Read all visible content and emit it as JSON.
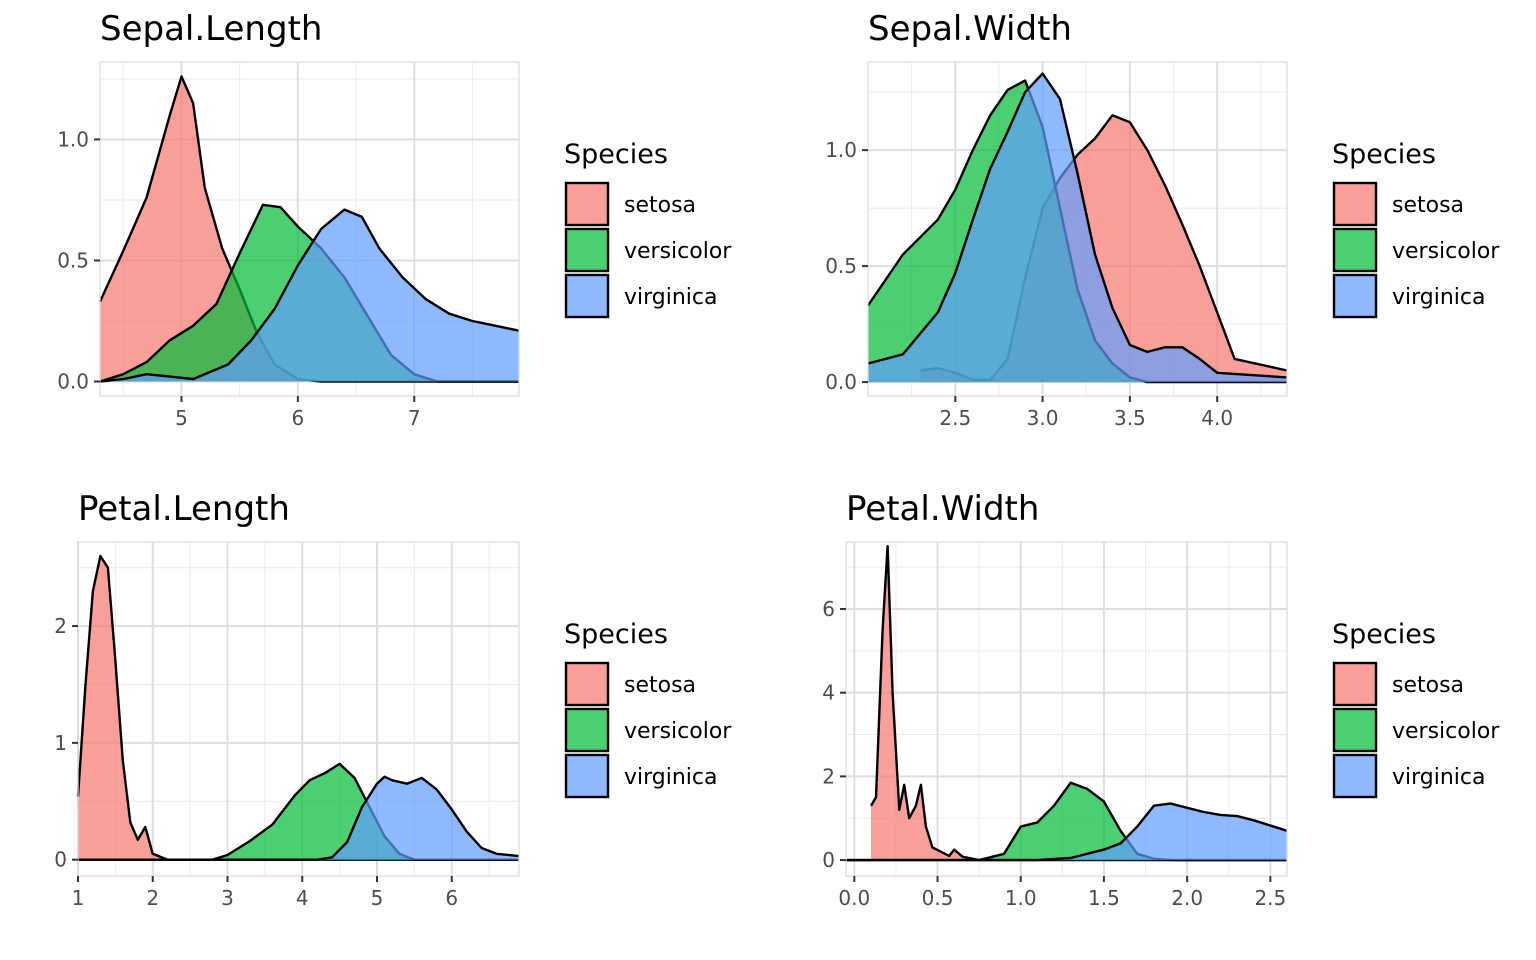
{
  "chart_data": [
    {
      "type": "area",
      "title": "Sepal.Length",
      "xlim": [
        4.3,
        7.9
      ],
      "ylim": [
        -0.06,
        1.32
      ],
      "x_ticks": [
        5,
        6,
        7
      ],
      "x_tick_labels": [
        "5",
        "6",
        "7"
      ],
      "y_ticks": [
        0,
        0.5,
        1.0
      ],
      "y_tick_labels": [
        "0.0",
        "0.5",
        "1.0"
      ],
      "grid": true,
      "legend": {
        "title": "Species",
        "position": "right",
        "entries": [
          "setosa",
          "versicolor",
          "virginica"
        ]
      },
      "series": [
        {
          "name": "setosa",
          "color": "#F8766D",
          "points": [
            [
              4.3,
              0.33
            ],
            [
              4.5,
              0.54
            ],
            [
              4.7,
              0.76
            ],
            [
              4.9,
              1.1
            ],
            [
              5.0,
              1.26
            ],
            [
              5.1,
              1.15
            ],
            [
              5.2,
              0.8
            ],
            [
              5.35,
              0.55
            ],
            [
              5.5,
              0.38
            ],
            [
              5.65,
              0.2
            ],
            [
              5.8,
              0.07
            ],
            [
              6.0,
              0.01
            ],
            [
              6.2,
              0
            ],
            [
              7.9,
              0
            ]
          ]
        },
        {
          "name": "versicolor",
          "color": "#00BA38",
          "points": [
            [
              4.3,
              0
            ],
            [
              4.5,
              0.03
            ],
            [
              4.7,
              0.08
            ],
            [
              4.9,
              0.17
            ],
            [
              5.1,
              0.23
            ],
            [
              5.3,
              0.32
            ],
            [
              5.5,
              0.53
            ],
            [
              5.7,
              0.73
            ],
            [
              5.85,
              0.72
            ],
            [
              6.0,
              0.64
            ],
            [
              6.2,
              0.55
            ],
            [
              6.4,
              0.43
            ],
            [
              6.6,
              0.27
            ],
            [
              6.8,
              0.11
            ],
            [
              7.0,
              0.03
            ],
            [
              7.2,
              0
            ],
            [
              7.9,
              0
            ]
          ]
        },
        {
          "name": "virginica",
          "color": "#619CFF",
          "points": [
            [
              4.3,
              0
            ],
            [
              4.5,
              0.01
            ],
            [
              4.7,
              0.03
            ],
            [
              4.9,
              0.02
            ],
            [
              5.1,
              0.01
            ],
            [
              5.4,
              0.07
            ],
            [
              5.6,
              0.17
            ],
            [
              5.8,
              0.3
            ],
            [
              6.0,
              0.48
            ],
            [
              6.2,
              0.63
            ],
            [
              6.4,
              0.71
            ],
            [
              6.55,
              0.68
            ],
            [
              6.7,
              0.55
            ],
            [
              6.9,
              0.43
            ],
            [
              7.1,
              0.34
            ],
            [
              7.3,
              0.28
            ],
            [
              7.5,
              0.25
            ],
            [
              7.7,
              0.23
            ],
            [
              7.9,
              0.21
            ]
          ]
        }
      ]
    },
    {
      "type": "area",
      "title": "Sepal.Width",
      "xlim": [
        2.0,
        4.4
      ],
      "ylim": [
        -0.06,
        1.38
      ],
      "x_ticks": [
        2.5,
        3.0,
        3.5,
        4.0
      ],
      "x_tick_labels": [
        "2.5",
        "3.0",
        "3.5",
        "4.0"
      ],
      "y_ticks": [
        0,
        0.5,
        1.0
      ],
      "y_tick_labels": [
        "0.0",
        "0.5",
        "1.0"
      ],
      "grid": true,
      "legend": {
        "title": "Species",
        "position": "right",
        "entries": [
          "setosa",
          "versicolor",
          "virginica"
        ]
      },
      "series": [
        {
          "name": "setosa",
          "color": "#F8766D",
          "points": [
            [
              2.3,
              0.05
            ],
            [
              2.4,
              0.06
            ],
            [
              2.5,
              0.04
            ],
            [
              2.6,
              0.01
            ],
            [
              2.7,
              0.01
            ],
            [
              2.8,
              0.1
            ],
            [
              2.9,
              0.45
            ],
            [
              3.0,
              0.75
            ],
            [
              3.1,
              0.88
            ],
            [
              3.2,
              0.98
            ],
            [
              3.3,
              1.05
            ],
            [
              3.4,
              1.15
            ],
            [
              3.5,
              1.12
            ],
            [
              3.6,
              1.0
            ],
            [
              3.7,
              0.85
            ],
            [
              3.8,
              0.68
            ],
            [
              3.9,
              0.5
            ],
            [
              4.0,
              0.3
            ],
            [
              4.1,
              0.1
            ],
            [
              4.4,
              0.05
            ]
          ]
        },
        {
          "name": "versicolor",
          "color": "#00BA38",
          "points": [
            [
              2.0,
              0.33
            ],
            [
              2.2,
              0.55
            ],
            [
              2.4,
              0.7
            ],
            [
              2.5,
              0.83
            ],
            [
              2.6,
              1.0
            ],
            [
              2.7,
              1.15
            ],
            [
              2.8,
              1.26
            ],
            [
              2.9,
              1.3
            ],
            [
              3.0,
              1.1
            ],
            [
              3.1,
              0.75
            ],
            [
              3.2,
              0.4
            ],
            [
              3.3,
              0.18
            ],
            [
              3.4,
              0.08
            ],
            [
              3.5,
              0.02
            ],
            [
              3.6,
              0
            ],
            [
              4.4,
              0
            ]
          ]
        },
        {
          "name": "virginica",
          "color": "#619CFF",
          "points": [
            [
              2.0,
              0.08
            ],
            [
              2.2,
              0.12
            ],
            [
              2.4,
              0.3
            ],
            [
              2.5,
              0.47
            ],
            [
              2.6,
              0.7
            ],
            [
              2.7,
              0.92
            ],
            [
              2.8,
              1.08
            ],
            [
              2.9,
              1.25
            ],
            [
              3.0,
              1.33
            ],
            [
              3.1,
              1.22
            ],
            [
              3.2,
              0.9
            ],
            [
              3.3,
              0.55
            ],
            [
              3.4,
              0.32
            ],
            [
              3.5,
              0.16
            ],
            [
              3.6,
              0.13
            ],
            [
              3.7,
              0.15
            ],
            [
              3.8,
              0.15
            ],
            [
              3.9,
              0.1
            ],
            [
              4.0,
              0.04
            ],
            [
              4.4,
              0.02
            ]
          ]
        }
      ]
    },
    {
      "type": "area",
      "title": "Petal.Length",
      "xlim": [
        1.0,
        6.9
      ],
      "ylim": [
        -0.14,
        2.72
      ],
      "x_ticks": [
        1,
        2,
        3,
        4,
        5,
        6
      ],
      "x_tick_labels": [
        "1",
        "2",
        "3",
        "4",
        "5",
        "6"
      ],
      "y_ticks": [
        0,
        1,
        2
      ],
      "y_tick_labels": [
        "0",
        "1",
        "2"
      ],
      "grid": true,
      "legend": {
        "title": "Species",
        "position": "right",
        "entries": [
          "setosa",
          "versicolor",
          "virginica"
        ]
      },
      "series": [
        {
          "name": "setosa",
          "color": "#F8766D",
          "points": [
            [
              1.0,
              0.54
            ],
            [
              1.1,
              1.5
            ],
            [
              1.2,
              2.3
            ],
            [
              1.3,
              2.6
            ],
            [
              1.4,
              2.5
            ],
            [
              1.5,
              1.7
            ],
            [
              1.6,
              0.85
            ],
            [
              1.7,
              0.32
            ],
            [
              1.8,
              0.17
            ],
            [
              1.9,
              0.28
            ],
            [
              2.0,
              0.05
            ],
            [
              2.2,
              0
            ],
            [
              6.9,
              0
            ]
          ]
        },
        {
          "name": "versicolor",
          "color": "#00BA38",
          "points": [
            [
              1.0,
              0
            ],
            [
              2.8,
              0
            ],
            [
              3.0,
              0.04
            ],
            [
              3.3,
              0.16
            ],
            [
              3.6,
              0.3
            ],
            [
              3.9,
              0.55
            ],
            [
              4.1,
              0.68
            ],
            [
              4.3,
              0.74
            ],
            [
              4.5,
              0.82
            ],
            [
              4.7,
              0.7
            ],
            [
              4.9,
              0.45
            ],
            [
              5.1,
              0.2
            ],
            [
              5.3,
              0.05
            ],
            [
              5.5,
              0
            ],
            [
              6.9,
              0
            ]
          ]
        },
        {
          "name": "virginica",
          "color": "#619CFF",
          "points": [
            [
              1.0,
              0
            ],
            [
              4.2,
              0
            ],
            [
              4.4,
              0.02
            ],
            [
              4.6,
              0.15
            ],
            [
              4.8,
              0.45
            ],
            [
              5.0,
              0.65
            ],
            [
              5.1,
              0.71
            ],
            [
              5.2,
              0.68
            ],
            [
              5.4,
              0.65
            ],
            [
              5.6,
              0.7
            ],
            [
              5.8,
              0.6
            ],
            [
              6.0,
              0.43
            ],
            [
              6.2,
              0.24
            ],
            [
              6.4,
              0.1
            ],
            [
              6.6,
              0.05
            ],
            [
              6.9,
              0.03
            ]
          ]
        }
      ]
    },
    {
      "type": "area",
      "title": "Petal.Width",
      "xlim": [
        -0.05,
        2.6
      ],
      "ylim": [
        -0.38,
        7.6
      ],
      "x_ticks": [
        0.0,
        0.5,
        1.0,
        1.5,
        2.0,
        2.5
      ],
      "x_tick_labels": [
        "0.0",
        "0.5",
        "1.0",
        "1.5",
        "2.0",
        "2.5"
      ],
      "y_ticks": [
        0,
        2,
        4,
        6
      ],
      "y_tick_labels": [
        "0",
        "2",
        "4",
        "6"
      ],
      "grid": true,
      "legend": {
        "title": "Species",
        "position": "right",
        "entries": [
          "setosa",
          "versicolor",
          "virginica"
        ]
      },
      "series": [
        {
          "name": "setosa",
          "color": "#F8766D",
          "points": [
            [
              0.1,
              1.3
            ],
            [
              0.13,
              1.5
            ],
            [
              0.17,
              5.5
            ],
            [
              0.2,
              7.5
            ],
            [
              0.23,
              4.0
            ],
            [
              0.27,
              1.2
            ],
            [
              0.3,
              1.8
            ],
            [
              0.33,
              1.0
            ],
            [
              0.37,
              1.3
            ],
            [
              0.4,
              1.8
            ],
            [
              0.43,
              0.8
            ],
            [
              0.47,
              0.3
            ],
            [
              0.52,
              0.2
            ],
            [
              0.57,
              0.1
            ],
            [
              0.6,
              0.25
            ],
            [
              0.65,
              0.08
            ],
            [
              0.75,
              0
            ],
            [
              2.6,
              0
            ]
          ]
        },
        {
          "name": "versicolor",
          "color": "#00BA38",
          "points": [
            [
              -0.05,
              0
            ],
            [
              0.75,
              0
            ],
            [
              0.9,
              0.15
            ],
            [
              1.0,
              0.8
            ],
            [
              1.1,
              0.9
            ],
            [
              1.2,
              1.3
            ],
            [
              1.3,
              1.85
            ],
            [
              1.4,
              1.7
            ],
            [
              1.5,
              1.4
            ],
            [
              1.6,
              0.7
            ],
            [
              1.7,
              0.15
            ],
            [
              1.8,
              0.03
            ],
            [
              1.9,
              0
            ],
            [
              2.6,
              0
            ]
          ]
        },
        {
          "name": "virginica",
          "color": "#619CFF",
          "points": [
            [
              -0.05,
              0
            ],
            [
              1.1,
              0
            ],
            [
              1.3,
              0.05
            ],
            [
              1.5,
              0.25
            ],
            [
              1.6,
              0.4
            ],
            [
              1.7,
              0.8
            ],
            [
              1.8,
              1.3
            ],
            [
              1.9,
              1.35
            ],
            [
              2.0,
              1.25
            ],
            [
              2.1,
              1.15
            ],
            [
              2.2,
              1.08
            ],
            [
              2.3,
              1.05
            ],
            [
              2.4,
              0.95
            ],
            [
              2.6,
              0.7
            ]
          ]
        }
      ]
    }
  ]
}
